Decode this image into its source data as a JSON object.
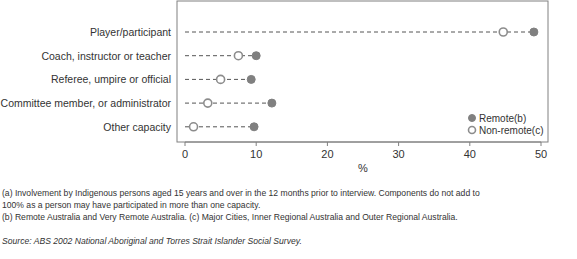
{
  "chart_data": {
    "type": "dot",
    "orientation": "horizontal",
    "categories": [
      "Player/participant",
      "Coach, instructor or teacher",
      "Referee, umpire or official",
      "Committee member, or administrator",
      "Other capacity"
    ],
    "series": [
      {
        "name": "Remote(b)",
        "color": "#808080",
        "marker": "circle",
        "values": [
          49,
          10,
          9.3,
          12.2,
          9.7
        ]
      },
      {
        "name": "Non-remote(c)",
        "color": "#8c8c8c",
        "marker": "open_circle",
        "values": [
          44.7,
          7.5,
          5,
          3.2,
          1.2
        ]
      }
    ],
    "xlim": [
      0,
      50
    ],
    "xticks": [
      0,
      10,
      20,
      30,
      40,
      50
    ],
    "x_label": "%",
    "grid": false,
    "legend": "lower right",
    "line_style": "dashed",
    "footnotes": [
      "(a) Involvement by Indigenous persons aged 15 years and over in the 12 months prior to interview. Components do not add to",
      "100% as a person may have participated in more than one capacity.",
      "(b) Remote Australia and Very Remote Australia. (c) Major Cities, Inner Regional Australia and Outer Regional Australia."
    ],
    "source": "Source: ABS 2002 National Aboriginal and Torres Strait Islander Social Survey."
  }
}
